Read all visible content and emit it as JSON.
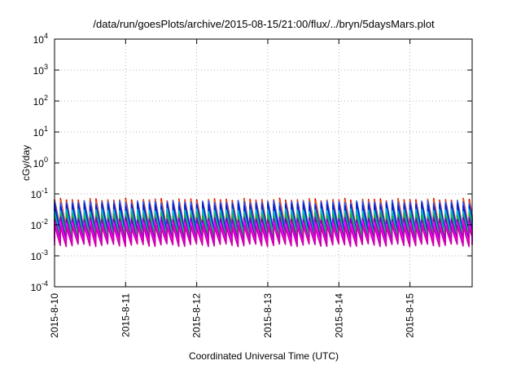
{
  "chart_data": {
    "type": "line",
    "title": "/data/run/goesPlots/archive/2015-08-15/21:00/flux/../bryn/5daysMars.plot",
    "xlabel": "Coordinated Universal Time (UTC)",
    "ylabel": "cGy/day",
    "yscale": "log",
    "ylim": [
      0.0001,
      10000
    ],
    "xlim": [
      "2015-08-10 00:00",
      "2015-08-15 21:00"
    ],
    "grid": true,
    "x_ticks": [
      "2015-8-10",
      "2015-8-11",
      "2015-8-12",
      "2015-8-13",
      "2015-8-14",
      "2015-8-15"
    ],
    "y_ticks": [
      {
        "base": "10",
        "exp": "-4"
      },
      {
        "base": "10",
        "exp": "-3"
      },
      {
        "base": "10",
        "exp": "-2"
      },
      {
        "base": "10",
        "exp": "-1"
      },
      {
        "base": "10",
        "exp": "0"
      },
      {
        "base": "10",
        "exp": "1"
      },
      {
        "base": "10",
        "exp": "2"
      },
      {
        "base": "10",
        "exp": "3"
      },
      {
        "base": "10",
        "exp": "4"
      }
    ],
    "pattern": {
      "cycle_hours": 2,
      "description": "sawtooth: sharp rise at cycle start, decay through cycle"
    },
    "series": [
      {
        "color": "#dd0000",
        "peak": 0.065,
        "trough": 0.0075
      },
      {
        "color": "#ee6600",
        "peak": 0.06,
        "trough": 0.007
      },
      {
        "color": "#2255ff",
        "peak": 0.055,
        "trough": 0.0065
      },
      {
        "color": "#0022cc",
        "peak": 0.045,
        "trough": 0.0055
      },
      {
        "color": "#00bbcc",
        "peak": 0.03,
        "trough": 0.0045
      },
      {
        "color": "#22aa44",
        "peak": 0.022,
        "trough": 0.004
      },
      {
        "color": "#7700cc",
        "peak": 0.016,
        "trough": 0.0032
      },
      {
        "color": "#ff00ff",
        "peak": 0.012,
        "trough": 0.0026
      },
      {
        "color": "#cc00aa",
        "peak": 0.009,
        "trough": 0.0022
      }
    ]
  }
}
